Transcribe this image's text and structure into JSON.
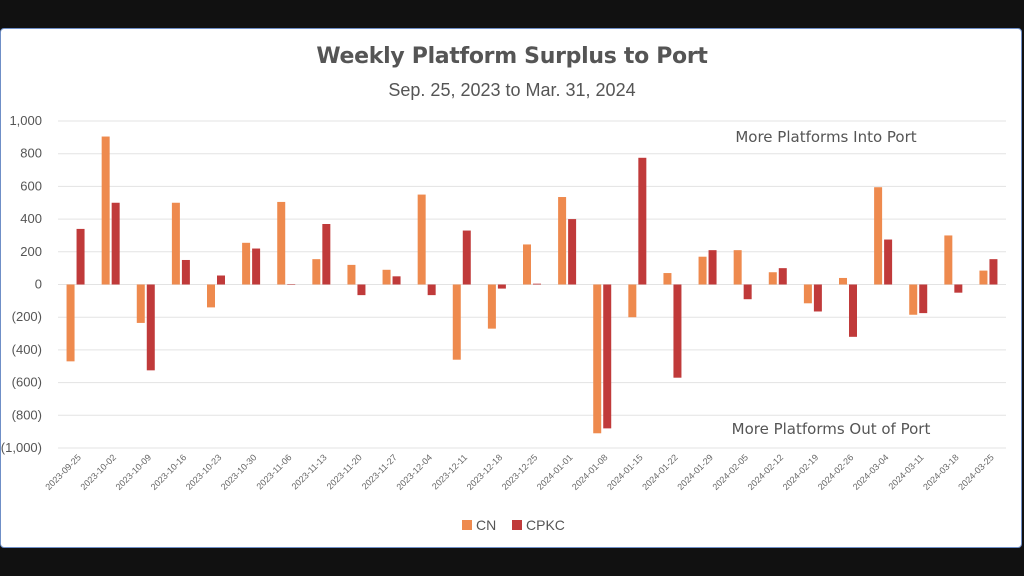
{
  "chart_data": {
    "type": "bar",
    "title": "Weekly Platform Surplus to Port",
    "subtitle": "Sep. 25, 2023 to Mar. 31, 2024",
    "xlabel": "",
    "ylabel": "",
    "ylim": [
      -1000,
      1000
    ],
    "yticks": [
      1000,
      800,
      600,
      400,
      200,
      0,
      -200,
      -400,
      -600,
      -800,
      -1000
    ],
    "ytick_labels": [
      "1,000",
      "800",
      "600",
      "400",
      "200",
      "0",
      "(200)",
      "(400)",
      "(600)",
      "(800)",
      "(1,000)"
    ],
    "categories": [
      "2023-09-25",
      "2023-10-02",
      "2023-10-09",
      "2023-10-16",
      "2023-10-23",
      "2023-10-30",
      "2023-11-06",
      "2023-11-13",
      "2023-11-20",
      "2023-11-27",
      "2023-12-04",
      "2023-12-11",
      "2023-12-18",
      "2023-12-25",
      "2024-01-01",
      "2024-01-08",
      "2024-01-15",
      "2024-01-22",
      "2024-01-29",
      "2024-02-05",
      "2024-02-12",
      "2024-02-19",
      "2024-02-26",
      "2024-03-04",
      "2024-03-11",
      "2024-03-18",
      "2024-03-25"
    ],
    "series": [
      {
        "name": "CN",
        "color": "#ee8a4e",
        "values": [
          -470,
          905,
          -235,
          500,
          -140,
          255,
          505,
          155,
          120,
          90,
          550,
          -460,
          -270,
          245,
          535,
          -910,
          -200,
          70,
          170,
          210,
          75,
          -115,
          40,
          595,
          -185,
          300,
          85
        ]
      },
      {
        "name": "CPKC",
        "color": "#c03a3a",
        "values": [
          340,
          500,
          -525,
          150,
          55,
          220,
          0,
          370,
          -65,
          50,
          -65,
          330,
          -25,
          5,
          400,
          -880,
          775,
          -570,
          210,
          -90,
          100,
          -165,
          -320,
          275,
          -175,
          -50,
          155
        ]
      }
    ],
    "annotations": [
      "More Platforms Into Port",
      "More Platforms Out of Port"
    ],
    "legend_position": "bottom",
    "grid": true
  }
}
